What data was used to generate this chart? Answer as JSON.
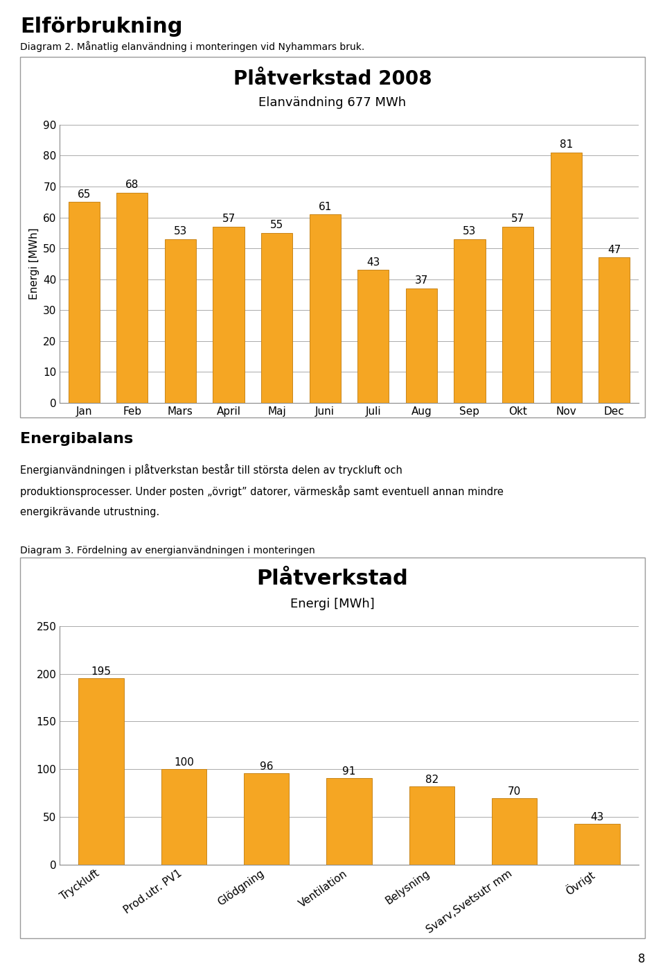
{
  "page_title": "Elförbrukning",
  "diagram2_caption": "Diagram 2. Månatlig elanvändning i monteringen vid Nyhammars bruk.",
  "chart1": {
    "title": "Plåtverkstad 2008",
    "subtitle": "Elanvändning 677 MWh",
    "ylabel": "Energi [MWh]",
    "categories": [
      "Jan",
      "Feb",
      "Mars",
      "April",
      "Maj",
      "Juni",
      "Juli",
      "Aug",
      "Sep",
      "Okt",
      "Nov",
      "Dec"
    ],
    "values": [
      65,
      68,
      53,
      57,
      55,
      61,
      43,
      37,
      53,
      57,
      81,
      47
    ],
    "ylim": [
      0,
      90
    ],
    "yticks": [
      0,
      10,
      20,
      30,
      40,
      50,
      60,
      70,
      80,
      90
    ],
    "bar_color": "#F5A623",
    "bar_edge_color": "#C8851A",
    "grid_color": "#AAAAAA",
    "title_fontsize": 20,
    "subtitle_fontsize": 13,
    "ylabel_fontsize": 11,
    "tick_fontsize": 11,
    "value_fontsize": 11
  },
  "section_title": "Energibalans",
  "section_text": "Energianvändningen i plåtverkstan består till största delen av tryckluft och\nproduktionsprocesser. Under posten „övrigt” datorer, värmeskåp samt eventuell annan mindre\nenergikreävande utrustning.",
  "diagram3_caption": "Diagram 3. Fördelning av energianvändningen i monteringen",
  "chart2": {
    "title": "Plåtverkstad",
    "subtitle": "Energi [MWh]",
    "categories": [
      "Tryckluft",
      "Prod.utr. PV1",
      "Glödgning",
      "Ventilation",
      "Belysning",
      "Svarv,Svetsutr mm",
      "Övrigt"
    ],
    "values": [
      195,
      100,
      96,
      91,
      82,
      70,
      43
    ],
    "ylim": [
      0,
      250
    ],
    "yticks": [
      0,
      50,
      100,
      150,
      200,
      250
    ],
    "bar_color": "#F5A623",
    "bar_edge_color": "#C8851A",
    "grid_color": "#AAAAAA",
    "title_fontsize": 22,
    "subtitle_fontsize": 13,
    "ylabel_fontsize": 11,
    "tick_fontsize": 11,
    "value_fontsize": 11
  },
  "page_number": "8",
  "bg_color": "#FFFFFF"
}
